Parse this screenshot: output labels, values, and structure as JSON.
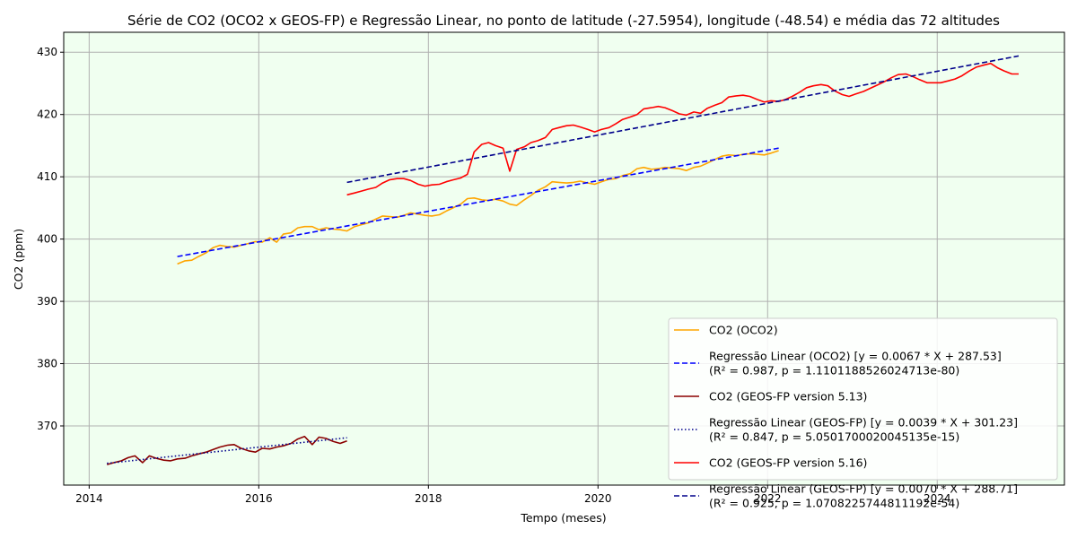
{
  "chart_data": {
    "type": "line",
    "title": "Série de CO2 (OCO2 x GEOS-FP) e Regressão Linear, no ponto de latitude (-27.5954), longitude (-48.54) e média das 72 altitudes",
    "xlabel": "Tempo (meses)",
    "ylabel": "CO2 (ppm)",
    "xlim": [
      2013.7,
      2025.5
    ],
    "ylim": [
      360.5,
      433.2
    ],
    "x_ticks": [
      "2014",
      "2016",
      "2018",
      "2020",
      "2022",
      "2024"
    ],
    "x_tick_values": [
      2014,
      2016,
      2018,
      2020,
      2022,
      2024
    ],
    "y_ticks": [
      "370",
      "380",
      "390",
      "400",
      "410",
      "420",
      "430"
    ],
    "y_tick_values": [
      370,
      380,
      390,
      400,
      410,
      420,
      430
    ],
    "grid": true,
    "background": "#f0fff0",
    "grid_color": "#b0b0b0",
    "legend_position": "bottom-right",
    "series": [
      {
        "name": "CO2 (OCO2)",
        "color": "#ffa500",
        "style": "solid",
        "x": [
          2015.04,
          2015.13,
          2015.21,
          2015.29,
          2015.38,
          2015.46,
          2015.54,
          2015.63,
          2015.71,
          2015.79,
          2015.88,
          2015.96,
          2016.04,
          2016.13,
          2016.21,
          2016.29,
          2016.38,
          2016.46,
          2016.54,
          2016.63,
          2016.71,
          2016.79,
          2016.88,
          2016.96,
          2017.04,
          2017.13,
          2017.21,
          2017.29,
          2017.38,
          2017.46,
          2017.54,
          2017.63,
          2017.71,
          2017.79,
          2017.88,
          2017.96,
          2018.04,
          2018.13,
          2018.21,
          2018.29,
          2018.38,
          2018.46,
          2018.54,
          2018.63,
          2018.71,
          2018.79,
          2018.88,
          2018.96,
          2019.04,
          2019.13,
          2019.21,
          2019.29,
          2019.38,
          2019.46,
          2019.54,
          2019.63,
          2019.71,
          2019.79,
          2019.88,
          2019.96,
          2020.04,
          2020.13,
          2020.21,
          2020.29,
          2020.38,
          2020.46,
          2020.54,
          2020.63,
          2020.71,
          2020.79,
          2020.88,
          2020.96,
          2021.04,
          2021.13,
          2021.21,
          2021.29,
          2021.38,
          2021.46,
          2021.54,
          2021.63,
          2021.71,
          2021.79,
          2021.88,
          2021.96,
          2022.04,
          2022.13
        ],
        "y": [
          396.0,
          396.5,
          396.6,
          397.2,
          397.8,
          398.6,
          399.0,
          398.8,
          398.7,
          399.0,
          399.3,
          399.6,
          399.5,
          400.2,
          399.5,
          400.8,
          401.0,
          401.8,
          402.0,
          402.0,
          401.5,
          401.8,
          401.6,
          401.5,
          401.3,
          402.0,
          402.3,
          402.6,
          403.2,
          403.7,
          403.6,
          403.5,
          403.8,
          404.2,
          404.0,
          403.8,
          403.7,
          403.9,
          404.5,
          405.0,
          405.6,
          406.5,
          406.6,
          406.3,
          406.2,
          406.4,
          406.1,
          405.6,
          405.4,
          406.3,
          407.0,
          407.8,
          408.4,
          409.2,
          409.1,
          409.0,
          409.1,
          409.3,
          409.0,
          408.8,
          409.2,
          409.6,
          409.7,
          410.2,
          410.5,
          411.3,
          411.5,
          411.2,
          411.3,
          411.5,
          411.4,
          411.3,
          411.0,
          411.5,
          411.7,
          412.2,
          412.8,
          413.3,
          413.5,
          413.4,
          413.6,
          413.7,
          413.6,
          413.5,
          413.8,
          414.2
        ]
      },
      {
        "name": "Regressão Linear (OCO2) [y = 0.0067 * X + 287.53]\n(R² = 0.987, p = 1.1101188526024713e-80)",
        "color": "#0000ff",
        "style": "dashed",
        "x": [
          2015.04,
          2022.13
        ],
        "y": [
          397.2,
          414.6
        ]
      },
      {
        "name": "CO2 (GEOS-FP version 5.13)",
        "color": "#8b0000",
        "style": "solid",
        "x": [
          2014.21,
          2014.29,
          2014.38,
          2014.46,
          2014.54,
          2014.63,
          2014.71,
          2014.79,
          2014.88,
          2014.96,
          2015.04,
          2015.13,
          2015.21,
          2015.29,
          2015.38,
          2015.46,
          2015.54,
          2015.63,
          2015.71,
          2015.79,
          2015.88,
          2015.96,
          2016.04,
          2016.13,
          2016.21,
          2016.29,
          2016.38,
          2016.46,
          2016.54,
          2016.63,
          2016.71,
          2016.79,
          2016.88,
          2016.96,
          2017.04
        ],
        "y": [
          363.8,
          364.1,
          364.4,
          364.9,
          365.2,
          364.1,
          365.2,
          364.8,
          364.5,
          364.4,
          364.7,
          364.8,
          365.2,
          365.5,
          365.8,
          366.2,
          366.6,
          366.9,
          367.0,
          366.4,
          366.0,
          365.8,
          366.4,
          366.3,
          366.6,
          366.8,
          367.2,
          367.9,
          368.3,
          367.0,
          368.2,
          368.0,
          367.5,
          367.2,
          367.6
        ]
      },
      {
        "name": "Regressão Linear (GEOS-FP) [y = 0.0039 * X + 301.23]\n(R² = 0.847, p = 5.0501700020045135e-15)",
        "color": "#00008b",
        "style": "dotted",
        "x": [
          2014.21,
          2017.04
        ],
        "y": [
          364.0,
          368.1
        ]
      },
      {
        "name": "CO2 (GEOS-FP version 5.16)",
        "color": "#ff0000",
        "style": "solid",
        "x": [
          2017.04,
          2017.13,
          2017.21,
          2017.29,
          2017.38,
          2017.46,
          2017.54,
          2017.63,
          2017.71,
          2017.79,
          2017.88,
          2017.96,
          2018.04,
          2018.13,
          2018.21,
          2018.29,
          2018.38,
          2018.46,
          2018.54,
          2018.63,
          2018.71,
          2018.79,
          2018.88,
          2018.96,
          2019.04,
          2019.13,
          2019.21,
          2019.29,
          2019.38,
          2019.46,
          2019.54,
          2019.63,
          2019.71,
          2019.79,
          2019.88,
          2019.96,
          2020.04,
          2020.13,
          2020.21,
          2020.29,
          2020.38,
          2020.46,
          2020.54,
          2020.63,
          2020.71,
          2020.79,
          2020.88,
          2020.96,
          2021.04,
          2021.13,
          2021.21,
          2021.29,
          2021.38,
          2021.46,
          2021.54,
          2021.63,
          2021.71,
          2021.79,
          2021.88,
          2021.96,
          2022.04,
          2022.13,
          2022.21,
          2022.29,
          2022.38,
          2022.46,
          2022.54,
          2022.63,
          2022.71,
          2022.79,
          2022.88,
          2022.96,
          2023.04,
          2023.13,
          2023.21,
          2023.29,
          2023.38,
          2023.46,
          2023.54,
          2023.63,
          2023.71,
          2023.79,
          2023.88,
          2023.96,
          2024.04,
          2024.13,
          2024.21,
          2024.29,
          2024.38,
          2024.46,
          2024.54,
          2024.63,
          2024.71,
          2024.79,
          2024.88,
          2024.96
        ],
        "y": [
          407.1,
          407.4,
          407.7,
          408.0,
          408.3,
          409.0,
          409.5,
          409.7,
          409.7,
          409.4,
          408.8,
          408.5,
          408.7,
          408.8,
          409.2,
          409.5,
          409.8,
          410.4,
          414.0,
          415.2,
          415.5,
          415.0,
          414.6,
          410.9,
          414.4,
          414.8,
          415.5,
          415.8,
          416.3,
          417.6,
          417.9,
          418.2,
          418.3,
          418.0,
          417.6,
          417.2,
          417.6,
          417.9,
          418.5,
          419.2,
          419.6,
          420.0,
          420.9,
          421.1,
          421.3,
          421.1,
          420.6,
          420.1,
          419.9,
          420.4,
          420.2,
          421.0,
          421.5,
          421.9,
          422.8,
          423.0,
          423.1,
          422.9,
          422.4,
          422.0,
          422.2,
          422.1,
          422.4,
          422.9,
          423.6,
          424.3,
          424.6,
          424.8,
          424.6,
          423.8,
          423.2,
          422.9,
          423.3,
          423.7,
          424.2,
          424.7,
          425.3,
          425.9,
          426.4,
          426.5,
          426.1,
          425.6,
          425.1,
          425.1,
          425.1,
          425.4,
          425.7,
          426.2,
          427.0,
          427.6,
          427.9,
          428.2,
          427.5,
          427.0,
          426.5,
          426.5
        ]
      },
      {
        "name": "Regressão Linear (GEOS-FP) [y = 0.0070 * X + 288.71]\n(R² = 0.925, p = 1.0708225744811192e-54)",
        "color": "#00008b",
        "style": "dashed",
        "x": [
          2017.04,
          2024.96
        ],
        "y": [
          409.1,
          429.4
        ]
      }
    ]
  }
}
